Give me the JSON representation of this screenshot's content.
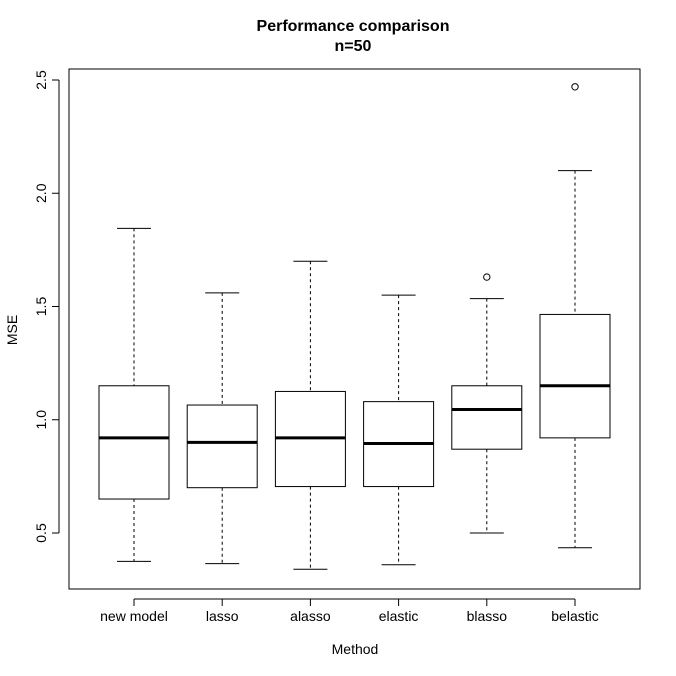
{
  "chart_data": {
    "type": "boxplot",
    "title": "Performance comparison",
    "subtitle": "n=50",
    "xlabel": "Method",
    "ylabel": "MSE",
    "ylim": [
      0.25,
      2.55
    ],
    "yticks": [
      "0.5",
      "1.0",
      "1.5",
      "2.0",
      "2.5"
    ],
    "categories": [
      "new model",
      "lasso",
      "alasso",
      "elastic",
      "blasso",
      "belastic"
    ],
    "boxes": [
      {
        "min": 0.375,
        "q1": 0.65,
        "median": 0.92,
        "q3": 1.15,
        "max": 1.845,
        "outliers": []
      },
      {
        "min": 0.365,
        "q1": 0.7,
        "median": 0.9,
        "q3": 1.065,
        "max": 1.56,
        "outliers": []
      },
      {
        "min": 0.34,
        "q1": 0.705,
        "median": 0.92,
        "q3": 1.125,
        "max": 1.7,
        "outliers": []
      },
      {
        "min": 0.36,
        "q1": 0.705,
        "median": 0.895,
        "q3": 1.08,
        "max": 1.55,
        "outliers": []
      },
      {
        "min": 0.5,
        "q1": 0.87,
        "median": 1.045,
        "q3": 1.15,
        "max": 1.535,
        "outliers": [
          1.63
        ]
      },
      {
        "min": 0.435,
        "q1": 0.92,
        "median": 1.15,
        "q3": 1.465,
        "max": 2.1,
        "outliers": [
          2.47
        ]
      }
    ]
  }
}
